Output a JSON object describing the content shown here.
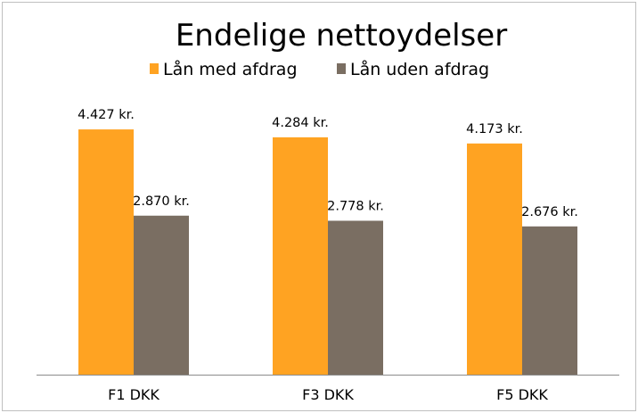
{
  "chart_data": {
    "type": "bar",
    "title": "Endelige nettoydelser",
    "categories": [
      "F1 DKK",
      "F3 DKK",
      "F5 DKK"
    ],
    "series": [
      {
        "name": "Lån med afdrag",
        "values": [
          4427,
          4284,
          4173
        ],
        "labels": [
          "4.427 kr.",
          "4.284 kr.",
          "4.173 kr."
        ],
        "color": "#FFA322"
      },
      {
        "name": "Lån uden afdrag",
        "values": [
          2870,
          2778,
          2676
        ],
        "labels": [
          "2.870 kr.",
          "2.778 kr.",
          "2.676 kr."
        ],
        "color": "#7A6E62"
      }
    ],
    "xlabel": "",
    "ylabel": "",
    "ylim": [
      0,
      5000
    ],
    "grid": false,
    "legend": "top",
    "value_axis_visible": false
  }
}
